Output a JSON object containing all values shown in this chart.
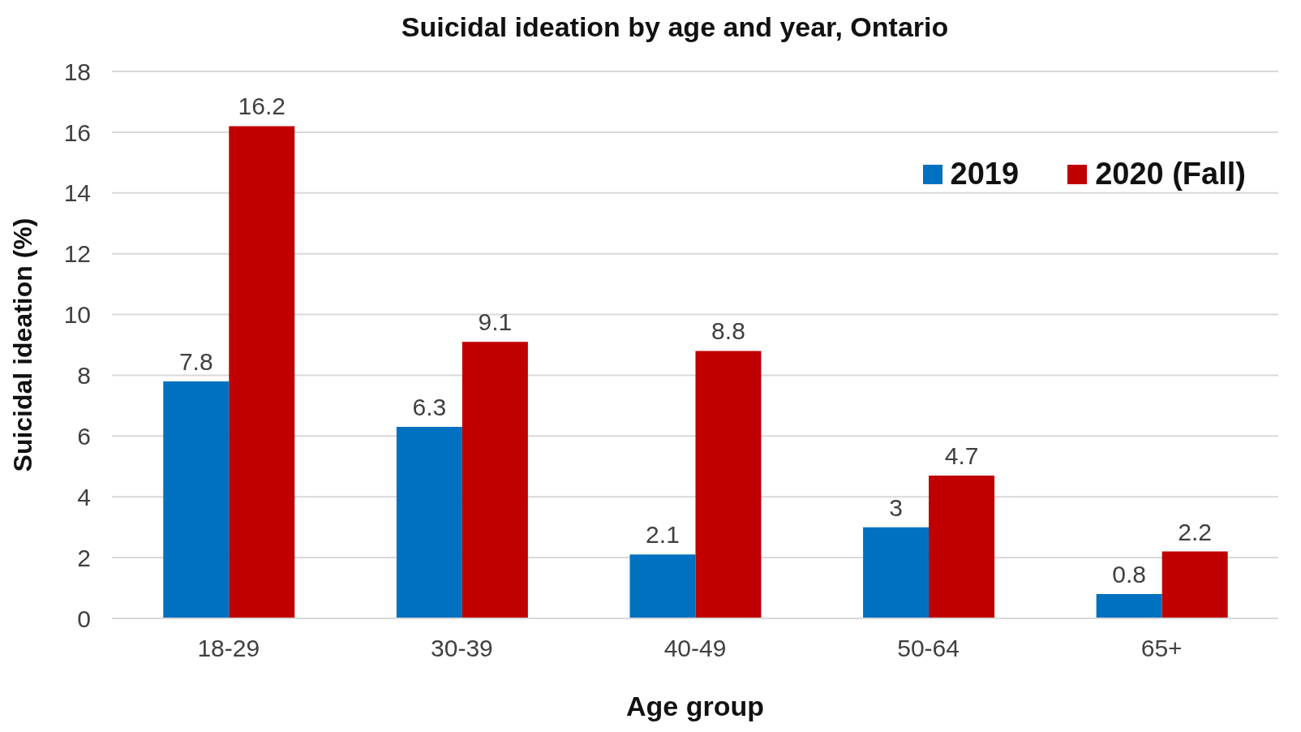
{
  "chart_data": {
    "type": "bar",
    "title": "Suicidal ideation by age and year, Ontario",
    "xlabel": "Age group",
    "ylabel": "Suicidal ideation (%)",
    "categories": [
      "18-29",
      "30-39",
      "40-49",
      "50-64",
      "65+"
    ],
    "series": [
      {
        "name": "2019",
        "color": "#0070c0",
        "values": [
          7.8,
          6.3,
          2.1,
          3,
          0.8
        ]
      },
      {
        "name": "2020 (Fall)",
        "color": "#c00000",
        "values": [
          16.2,
          9.1,
          8.8,
          4.7,
          2.2
        ]
      }
    ],
    "ylim": [
      0,
      18
    ],
    "yticks": [
      0,
      2,
      4,
      6,
      8,
      10,
      12,
      14,
      16,
      18
    ],
    "grid": "y",
    "legend": "top right",
    "data_labels": true
  }
}
